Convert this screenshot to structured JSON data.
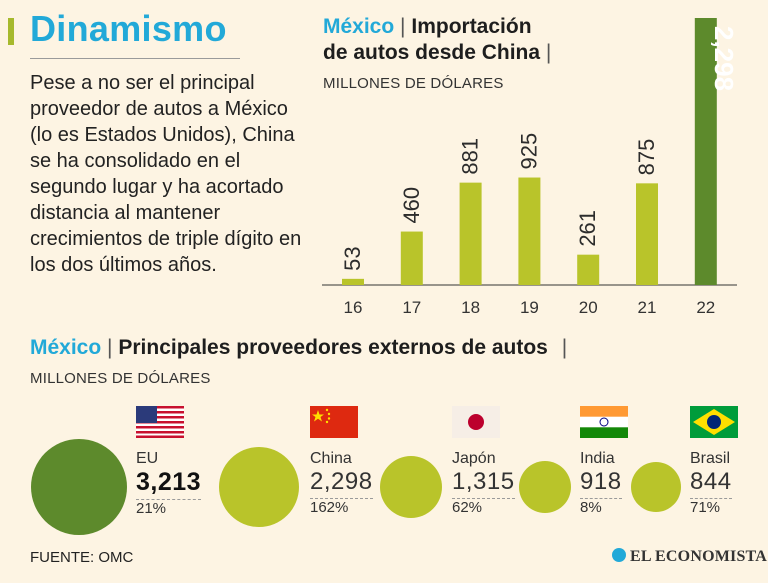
{
  "header": {
    "title": "Dinamismo",
    "description": "Pese a no ser el principal proveedor de autos a México (lo es Estados Unidos), China se ha consolidado en el segundo lugar y ha acortado distancia al mantener crecimientos de triple dígito en los dos últimos años."
  },
  "colors": {
    "accent_blue": "#22a9d8",
    "bar_green": "#b9c42a",
    "highlight_green": "#5d8a2c",
    "background": "#fdf4e3"
  },
  "chart_data": [
    {
      "type": "bar",
      "title_country": "México",
      "title_separator": "|",
      "title_line1": "Importación",
      "title_line2": "de autos desde China",
      "title_trailing": "|",
      "ylabel": "MILLONES DE DÓLARES",
      "categories": [
        "16",
        "17",
        "18",
        "19",
        "20",
        "21",
        "22"
      ],
      "values": [
        53,
        460,
        881,
        925,
        261,
        875,
        2298
      ],
      "value_labels": [
        "53",
        "460",
        "881",
        "925",
        "261",
        "875",
        "2,298"
      ],
      "highlight_index": 6,
      "ylim": [
        0,
        2298
      ],
      "grid": false
    },
    {
      "type": "bubble",
      "title_country": "México",
      "title_separator": "|",
      "title": "Principales proveedores externos de autos",
      "title_trailing": "|",
      "units": "MILLONES DE DÓLARES",
      "items": [
        {
          "flag": "usa-flag",
          "name": "EU",
          "value": 3213,
          "value_label": "3,213",
          "change": "21%"
        },
        {
          "flag": "china-flag",
          "name": "China",
          "value": 2298,
          "value_label": "2,298",
          "change": "162%"
        },
        {
          "flag": "japan-flag",
          "name": "Japón",
          "value": 1315,
          "value_label": "1,315",
          "change": "62%"
        },
        {
          "flag": "india-flag",
          "name": "India",
          "value": 918,
          "value_label": "918",
          "change": "8%"
        },
        {
          "flag": "brazil-flag",
          "name": "Brasil",
          "value": 844,
          "value_label": "844",
          "change": "71%"
        }
      ]
    }
  ],
  "footer": {
    "source": "FUENTE:  OMC",
    "logo": "EL ECONOMISTA"
  }
}
